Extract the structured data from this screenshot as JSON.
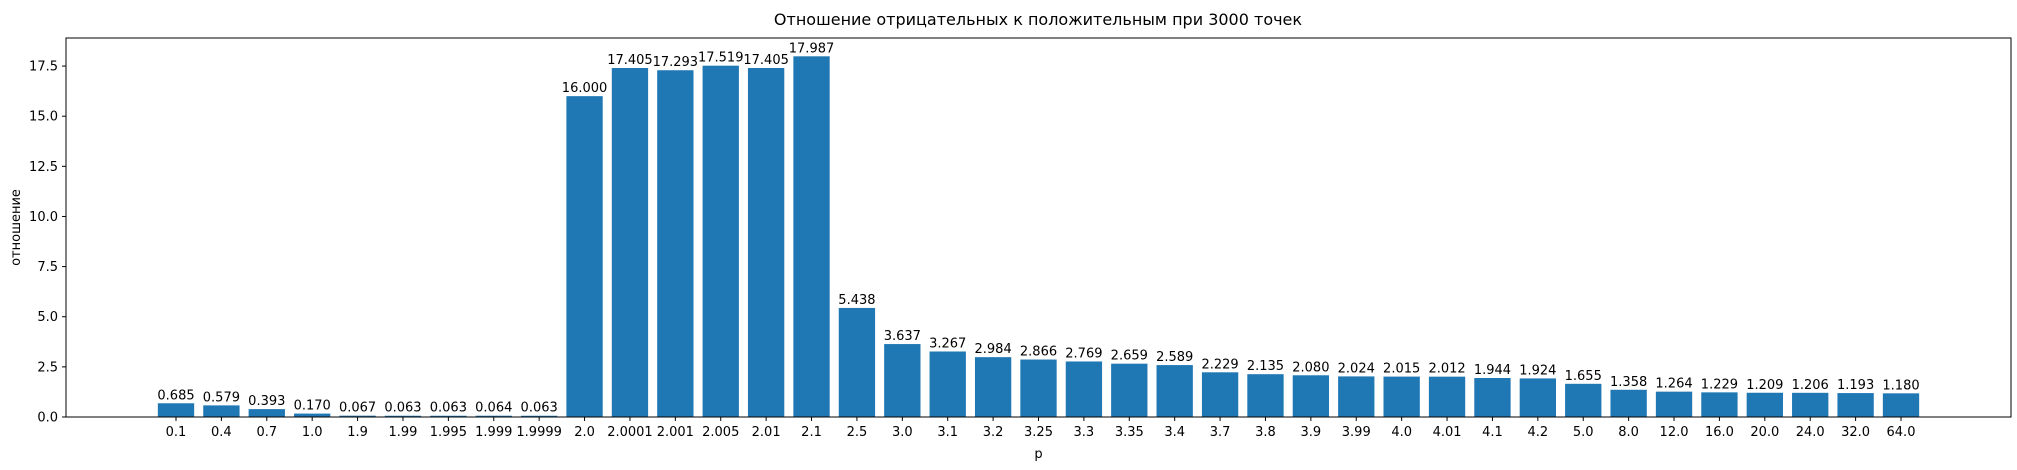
{
  "chart_data": {
    "type": "bar",
    "title": "Отношение отрицательных к положительным при 3000 точек",
    "xlabel": "p",
    "ylabel": "отношение",
    "categories": [
      "0.1",
      "0.4",
      "0.7",
      "1.0",
      "1.9",
      "1.99",
      "1.995",
      "1.999",
      "1.9999",
      "2.0",
      "2.0001",
      "2.001",
      "2.005",
      "2.01",
      "2.1",
      "2.5",
      "3.0",
      "3.1",
      "3.2",
      "3.25",
      "3.3",
      "3.35",
      "3.4",
      "3.7",
      "3.8",
      "3.9",
      "3.99",
      "4.0",
      "4.01",
      "4.1",
      "4.2",
      "5.0",
      "8.0",
      "12.0",
      "16.0",
      "20.0",
      "24.0",
      "32.0",
      "64.0"
    ],
    "values": [
      0.685,
      0.579,
      0.393,
      0.17,
      0.067,
      0.063,
      0.063,
      0.064,
      0.063,
      16.0,
      17.405,
      17.293,
      17.519,
      17.405,
      17.987,
      5.438,
      3.637,
      3.267,
      2.984,
      2.866,
      2.769,
      2.659,
      2.589,
      2.229,
      2.135,
      2.08,
      2.024,
      2.015,
      2.012,
      1.944,
      1.924,
      1.655,
      1.358,
      1.264,
      1.229,
      1.209,
      1.206,
      1.193,
      1.18
    ],
    "value_labels": [
      "0.685",
      "0.579",
      "0.393",
      "0.170",
      "0.067",
      "0.063",
      "0.063",
      "0.064",
      "0.063",
      "16.000",
      "17.405",
      "17.293",
      "17.519",
      "17.405",
      "17.987",
      "5.438",
      "3.637",
      "3.267",
      "2.984",
      "2.866",
      "2.769",
      "2.659",
      "2.589",
      "2.229",
      "2.135",
      "2.080",
      "2.024",
      "2.015",
      "2.012",
      "1.944",
      "1.924",
      "1.655",
      "1.358",
      "1.264",
      "1.229",
      "1.209",
      "1.206",
      "1.193",
      "1.180"
    ],
    "yticks": [
      "0.0",
      "2.5",
      "5.0",
      "7.5",
      "10.0",
      "12.5",
      "15.0",
      "17.5"
    ],
    "ylim": [
      0,
      18.9
    ],
    "grid": false,
    "bar_color": "#1f77b4"
  }
}
